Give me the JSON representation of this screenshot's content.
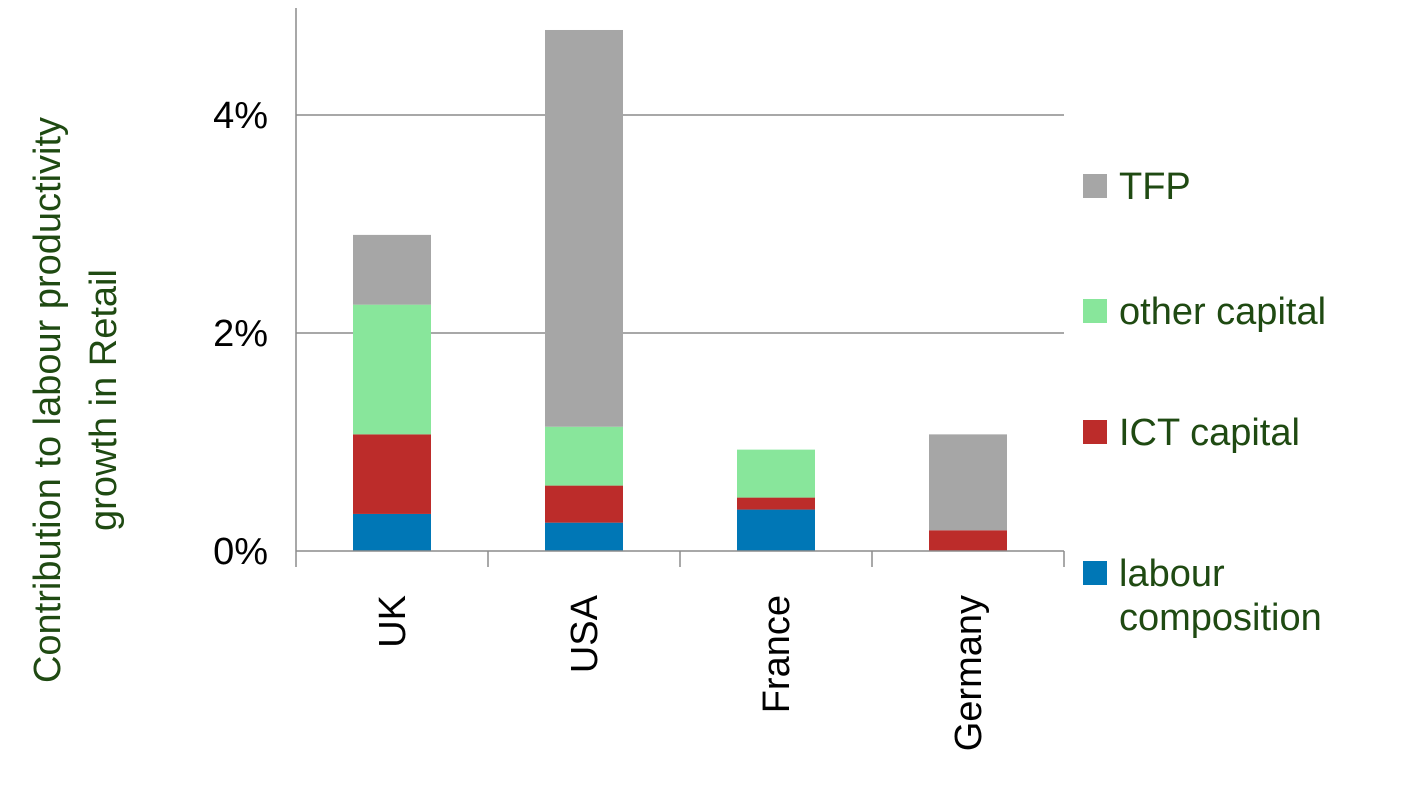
{
  "chart_data": {
    "type": "bar",
    "stacked": true,
    "title": "",
    "ylabel": [
      "Contribution to labour productivity",
      "growth in Retail"
    ],
    "xlabel": "",
    "categories": [
      "UK",
      "USA",
      "France",
      "Germany"
    ],
    "yticks": [
      "0%",
      "2%",
      "4%"
    ],
    "ylim": [
      0,
      0.048
    ],
    "grid": true,
    "legend_position": "right",
    "series": [
      {
        "name": "labour composition",
        "legend_lines": [
          "labour",
          "composition"
        ],
        "color": "#0077b6",
        "values": [
          0.0034,
          0.0026,
          0.0038,
          0.0
        ]
      },
      {
        "name": "ICT capital",
        "legend_lines": [
          "ICT capital"
        ],
        "color": "#bc2c2a",
        "values": [
          0.0073,
          0.0034,
          0.0011,
          0.0019
        ]
      },
      {
        "name": "other capital",
        "legend_lines": [
          "other capital"
        ],
        "color": "#88e69b",
        "values": [
          0.0119,
          0.0054,
          0.0044,
          0.0
        ]
      },
      {
        "name": "TFP",
        "legend_lines": [
          "TFP"
        ],
        "color": "#a6a6a6",
        "values": [
          0.0064,
          0.0364,
          0.0,
          0.0088
        ]
      }
    ]
  }
}
